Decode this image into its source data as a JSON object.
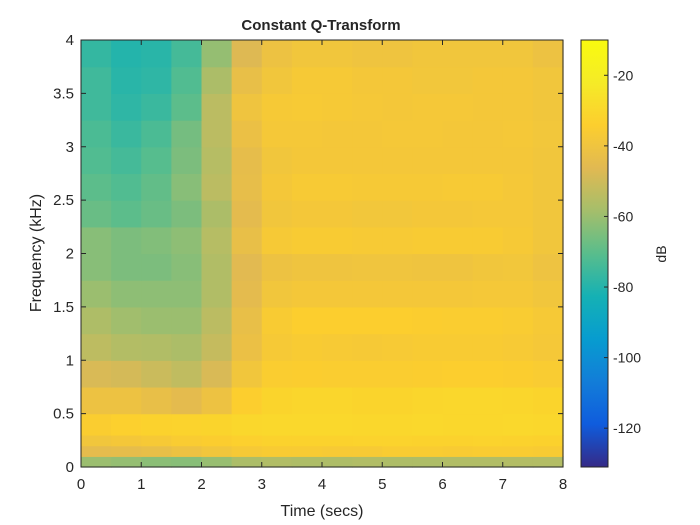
{
  "chart_data": {
    "type": "heatmap",
    "title": "Constant Q-Transform",
    "xlabel": "Time (secs)",
    "ylabel": "Frequency (kHz)",
    "colorbar_label": "dB",
    "colormap": "parula",
    "xlim": [
      0,
      8
    ],
    "ylim": [
      0,
      4
    ],
    "clim": [
      -131,
      -10
    ],
    "x_ticks": [
      0,
      1,
      2,
      3,
      4,
      5,
      6,
      7,
      8
    ],
    "x_tick_labels": [
      "0",
      "1",
      "2",
      "3",
      "4",
      "5",
      "6",
      "7",
      "8"
    ],
    "y_ticks": [
      0,
      0.5,
      1,
      1.5,
      2,
      2.5,
      3,
      3.5,
      4
    ],
    "y_tick_labels": [
      "0",
      "0.5",
      "1",
      "1.5",
      "2",
      "2.5",
      "3",
      "3.5",
      "4"
    ],
    "colorbar_ticks": [
      -20,
      -40,
      -60,
      -80,
      -100,
      -120
    ],
    "colorbar_tick_labels": [
      "-20",
      "-40",
      "-60",
      "-80",
      "-100",
      "-120"
    ],
    "time_bins": [
      0,
      0.5,
      1,
      1.5,
      2,
      2.5,
      3,
      3.5,
      4,
      4.5,
      5,
      5.5,
      6,
      6.5,
      7,
      7.5,
      8
    ],
    "freq_bins": [
      0,
      0.1,
      0.2,
      0.3,
      0.5,
      0.75,
      1.0,
      1.25,
      1.5,
      1.75,
      2.0,
      2.25,
      2.5,
      2.75,
      3.0,
      3.25,
      3.5,
      3.75,
      4.0
    ],
    "values_db": [
      [
        -60,
        -60,
        -62,
        -63,
        -63,
        -58,
        -56,
        -56,
        -57,
        -56,
        -56,
        -57,
        -56,
        -56,
        -56,
        -55,
        -56
      ],
      [
        -45,
        -44,
        -44,
        -42,
        -40,
        -38,
        -36,
        -36,
        -36,
        -37,
        -36,
        -35,
        -36,
        -36,
        -35,
        -36,
        -36
      ],
      [
        -40,
        -38,
        -38,
        -36,
        -35,
        -34,
        -33,
        -32,
        -33,
        -32,
        -32,
        -32,
        -33,
        -32,
        -32,
        -33,
        -33
      ],
      [
        -36,
        -34,
        -33,
        -32,
        -32,
        -31,
        -30,
        -30,
        -30,
        -30,
        -31,
        -30,
        -30,
        -31,
        -30,
        -30,
        -31
      ],
      [
        -42,
        -40,
        -42,
        -44,
        -46,
        -36,
        -32,
        -31,
        -31,
        -31,
        -32,
        -31,
        -31,
        -30,
        -31,
        -31,
        -32
      ],
      [
        -48,
        -48,
        -50,
        -52,
        -54,
        -42,
        -36,
        -34,
        -35,
        -35,
        -35,
        -35,
        -34,
        -34,
        -34,
        -35,
        -36
      ],
      [
        -52,
        -55,
        -56,
        -56,
        -58,
        -46,
        -38,
        -36,
        -36,
        -37,
        -37,
        -36,
        -36,
        -36,
        -36,
        -37,
        -38
      ],
      [
        -55,
        -58,
        -60,
        -60,
        -60,
        -48,
        -38,
        -34,
        -34,
        -34,
        -34,
        -34,
        -35,
        -35,
        -35,
        -36,
        -38
      ],
      [
        -58,
        -62,
        -62,
        -62,
        -62,
        -50,
        -40,
        -38,
        -38,
        -38,
        -38,
        -38,
        -38,
        -38,
        -37,
        -38,
        -40
      ],
      [
        -62,
        -64,
        -66,
        -64,
        -62,
        -50,
        -42,
        -40,
        -40,
        -40,
        -39,
        -40,
        -40,
        -40,
        -38,
        -39,
        -42
      ],
      [
        -62,
        -64,
        -66,
        -62,
        -62,
        -48,
        -38,
        -36,
        -36,
        -36,
        -37,
        -36,
        -36,
        -36,
        -36,
        -38,
        -40
      ],
      [
        -66,
        -70,
        -70,
        -66,
        -64,
        -50,
        -40,
        -38,
        -38,
        -38,
        -39,
        -38,
        -38,
        -38,
        -37,
        -38,
        -40
      ],
      [
        -68,
        -72,
        -72,
        -66,
        -60,
        -48,
        -39,
        -37,
        -36,
        -37,
        -37,
        -37,
        -37,
        -36,
        -37,
        -38,
        -40
      ],
      [
        -70,
        -74,
        -74,
        -68,
        -62,
        -48,
        -40,
        -38,
        -38,
        -38,
        -38,
        -38,
        -38,
        -38,
        -38,
        -38,
        -40
      ],
      [
        -70,
        -76,
        -76,
        -70,
        -62,
        -46,
        -38,
        -37,
        -38,
        -38,
        -38,
        -37,
        -38,
        -38,
        -38,
        -37,
        -40
      ],
      [
        -72,
        -78,
        -78,
        -74,
        -66,
        -42,
        -38,
        -36,
        -37,
        -37,
        -38,
        -38,
        -37,
        -38,
        -38,
        -38,
        -40
      ],
      [
        -72,
        -78,
        -80,
        -76,
        -68,
        -46,
        -40,
        -38,
        -36,
        -38,
        -38,
        -38,
        -39,
        -38,
        -38,
        -38,
        -40
      ],
      [
        -74,
        -80,
        -80,
        -78,
        -70,
        -52,
        -42,
        -40,
        -38,
        -40,
        -40,
        -40,
        -38,
        -40,
        -38,
        -40,
        -42
      ],
      [
        -76,
        -80,
        -80,
        -78,
        -74,
        -70,
        -68,
        -66,
        -66,
        -66,
        -66,
        -66,
        -66,
        -66,
        -66,
        -66,
        -66
      ]
    ]
  }
}
